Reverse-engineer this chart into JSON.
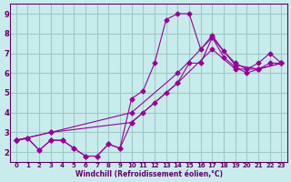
{
  "xlabel": "Windchill (Refroidissement éolien,°C)",
  "ylabel": "",
  "bg_color": "#c8ecec",
  "grid_color": "#a0c8c8",
  "line_color": "#990099",
  "xlim": [
    0,
    23
  ],
  "ylim": [
    1.5,
    9.5
  ],
  "xticks": [
    0,
    1,
    2,
    3,
    4,
    5,
    6,
    7,
    8,
    9,
    10,
    11,
    12,
    13,
    14,
    15,
    16,
    17,
    18,
    19,
    20,
    21,
    22,
    23
  ],
  "yticks": [
    2,
    3,
    4,
    5,
    6,
    7,
    8,
    9
  ],
  "series": [
    {
      "x": [
        0,
        1,
        2,
        3,
        4,
        5,
        6,
        7,
        8,
        9,
        10,
        11,
        12,
        13,
        14,
        15,
        16,
        17,
        18,
        19,
        20,
        21,
        22,
        23
      ],
      "y": [
        2.6,
        2.7,
        2.1,
        2.6,
        2.6,
        2.2,
        1.8,
        1.8,
        2.4,
        2.2,
        4.7,
        5.1,
        6.5,
        8.7,
        9.0,
        9.0,
        7.2,
        7.9,
        7.1,
        6.5,
        6.2,
        6.5,
        7.0,
        6.5
      ]
    },
    {
      "x": [
        0,
        1,
        2,
        3,
        4,
        5,
        6,
        7,
        8,
        9,
        10,
        11,
        12,
        13,
        14,
        15,
        16,
        17,
        18,
        19,
        20,
        21,
        22,
        23
      ],
      "y": [
        2.6,
        2.7,
        2.1,
        2.6,
        2.6,
        2.2,
        1.8,
        1.8,
        2.4,
        2.2,
        3.5,
        4.0,
        4.5,
        5.0,
        5.5,
        6.5,
        6.5,
        7.8,
        6.8,
        6.3,
        6.0,
        6.2,
        6.5,
        6.5
      ]
    },
    {
      "x": [
        0,
        3,
        10,
        14,
        17,
        19,
        21,
        23
      ],
      "y": [
        2.6,
        3.0,
        3.5,
        5.5,
        7.2,
        6.2,
        6.2,
        6.5
      ]
    },
    {
      "x": [
        0,
        3,
        10,
        14,
        17,
        19,
        21,
        23
      ],
      "y": [
        2.6,
        3.0,
        4.0,
        6.0,
        7.8,
        6.4,
        6.2,
        6.5
      ]
    }
  ]
}
